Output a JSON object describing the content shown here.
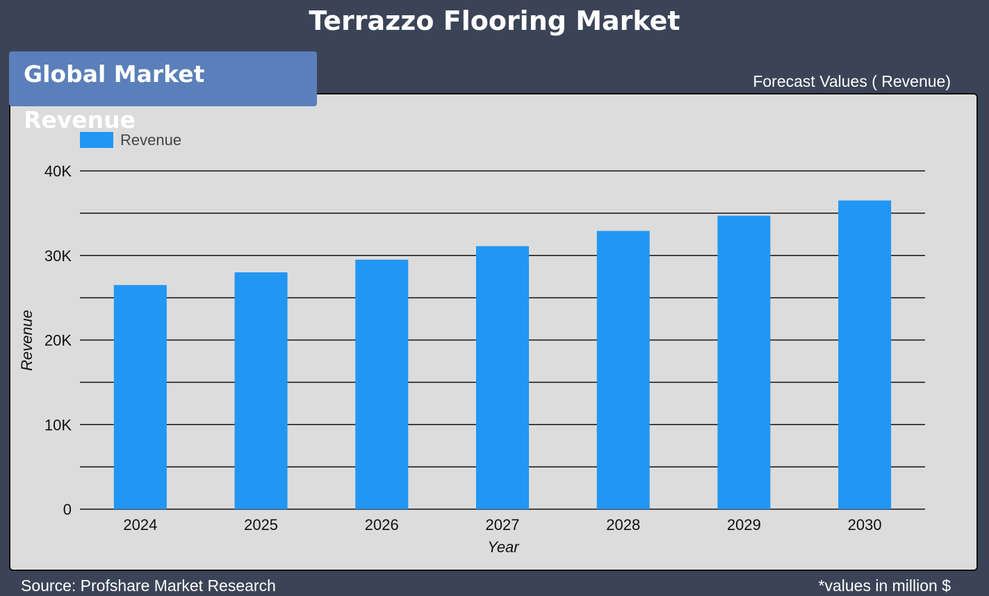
{
  "header": {
    "title": "Terrazzo Flooring Market"
  },
  "panel": {
    "tab_label": "Global Market Revenue",
    "forecast_label": "Forecast Values ( Revenue)"
  },
  "footer": {
    "source": "Source: Profshare Market Research",
    "units_note": "*values in million $"
  },
  "colors": {
    "background": "#3b4457",
    "panel": "#dcdcdc",
    "tab": "#5a7fba",
    "bar": "#2196f3"
  },
  "chart_data": {
    "type": "bar",
    "categories": [
      "2024",
      "2025",
      "2026",
      "2027",
      "2028",
      "2029",
      "2030"
    ],
    "series": [
      {
        "name": "Revenue",
        "values": [
          26500,
          28000,
          29500,
          31100,
          32900,
          34700,
          36500
        ]
      }
    ],
    "xlabel": "Year",
    "ylabel": "Revenue",
    "ylim": [
      0,
      40000
    ],
    "yticks": [
      {
        "value": 0,
        "label": "0"
      },
      {
        "value": 10000,
        "label": "10K"
      },
      {
        "value": 20000,
        "label": "20K"
      },
      {
        "value": 30000,
        "label": "30K"
      },
      {
        "value": 40000,
        "label": "40K"
      }
    ],
    "minor_gridlines": [
      5000,
      15000,
      25000,
      35000
    ],
    "grid": true,
    "legend_position": "top-left"
  }
}
